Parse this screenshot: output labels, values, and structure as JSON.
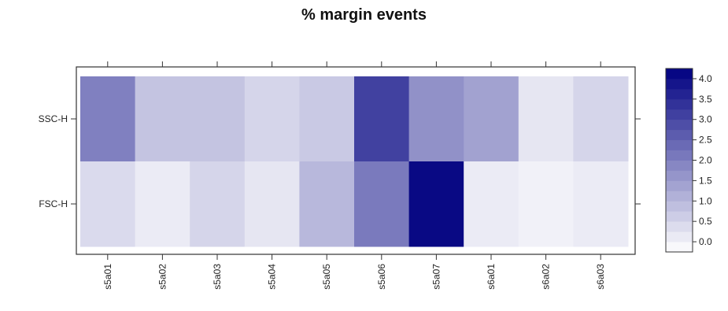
{
  "chart_data": {
    "type": "heatmap",
    "title": "% margin events",
    "x_categories": [
      "s5a01",
      "s5a02",
      "s5a03",
      "s5a04",
      "s5a05",
      "s5a06",
      "s5a07",
      "s6a01",
      "s6a02",
      "s6a03"
    ],
    "y_categories": [
      "SSC-H",
      "FSC-H"
    ],
    "values": [
      [
        2.0,
        0.8,
        0.8,
        0.5,
        0.7,
        3.1,
        1.7,
        1.4,
        0.2,
        0.5
      ],
      [
        0.4,
        0.1,
        0.5,
        0.2,
        1.0,
        2.1,
        4.1,
        0.1,
        0.0,
        0.1
      ]
    ],
    "colorbar": {
      "range": [
        -0.25,
        4.25
      ],
      "ticks": [
        "0.0",
        "0.5",
        "1.0",
        "1.5",
        "2.0",
        "2.5",
        "3.0",
        "3.5",
        "4.0"
      ],
      "tick_values": [
        0.0,
        0.5,
        1.0,
        1.5,
        2.0,
        2.5,
        3.0,
        3.5,
        4.0
      ],
      "low_color": "#ffffff",
      "high_color": "#000080"
    }
  }
}
